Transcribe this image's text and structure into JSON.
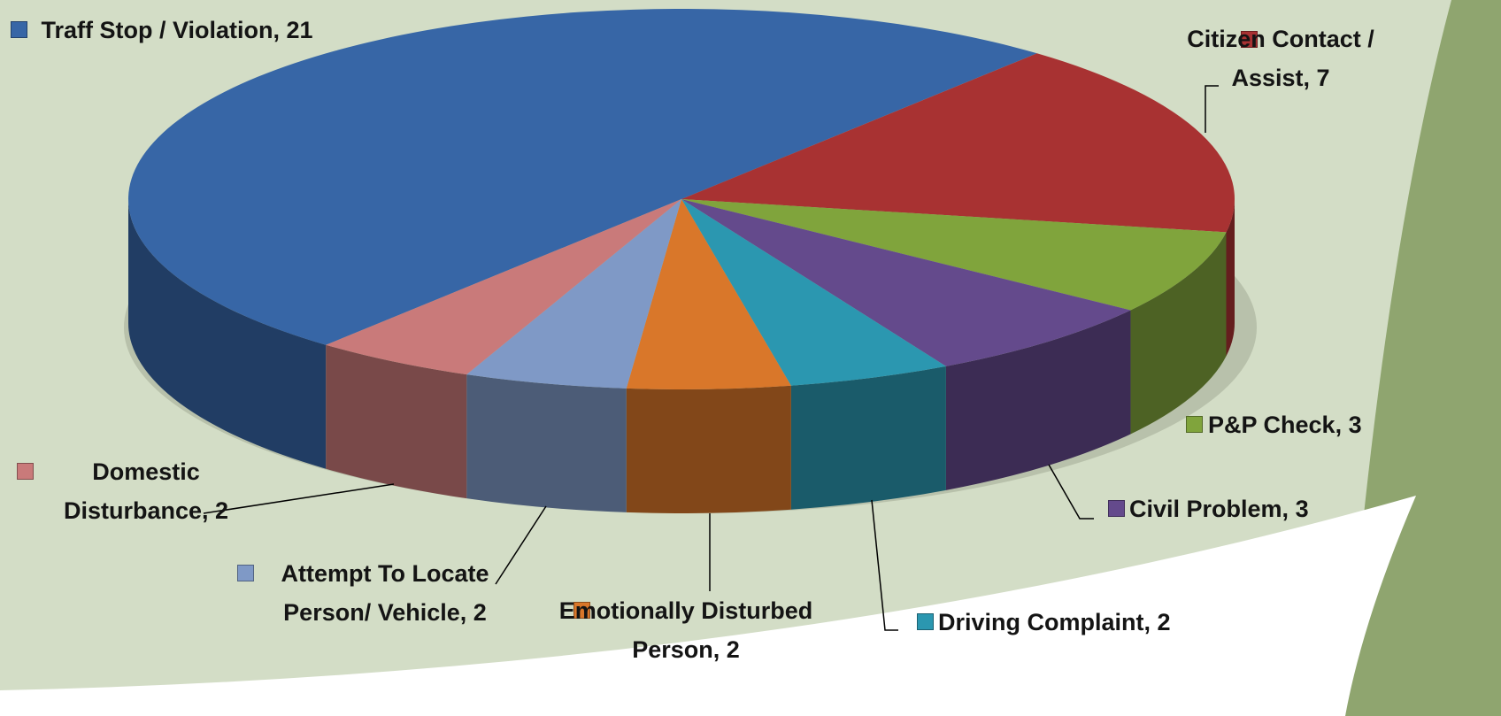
{
  "chart_data": {
    "type": "pie3d",
    "categories": [
      "Traff Stop / Violation",
      "Citizen Contact / Assist",
      "P&P Check",
      "Civil Problem",
      "Driving Complaint",
      "Emotionally Disturbed Person",
      "Attempt To Locate Person/ Vehicle",
      "Domestic Disturbance"
    ],
    "values": [
      21,
      7,
      3,
      3,
      2,
      2,
      2,
      2
    ],
    "colors": [
      "#3766a6",
      "#a83232",
      "#80a43c",
      "#644a8c",
      "#2b97b0",
      "#d9772a",
      "#7f99c6",
      "#c97a7a"
    ]
  }
}
